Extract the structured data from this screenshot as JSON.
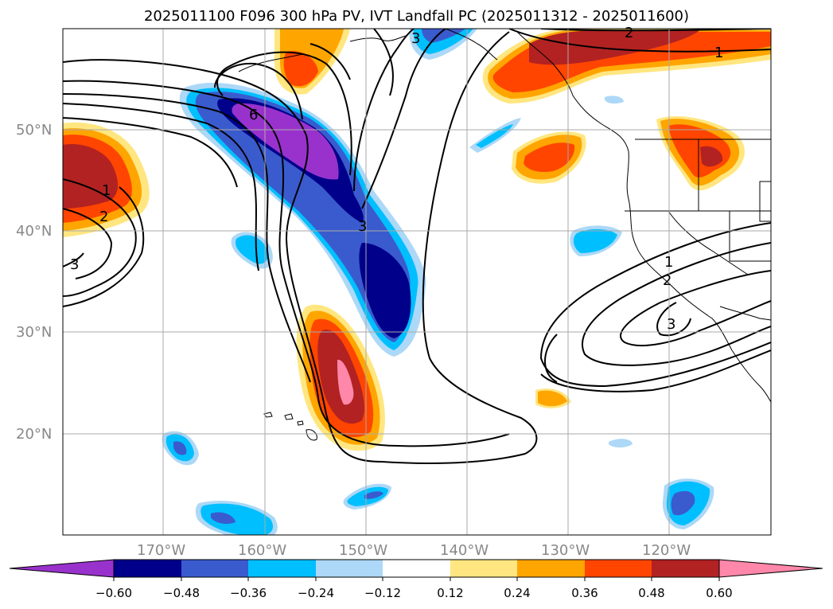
{
  "title": "2025011100 F096 300 hPa PV, IVT Landfall PC (2025011312 - 2025011600)",
  "lat_labels": [
    "50°N",
    "40°N",
    "30°N",
    "20°N"
  ],
  "lon_labels": [
    "170°W",
    "160°W",
    "150°W",
    "140°W",
    "130°W",
    "120°W"
  ],
  "contour_labels": [
    "1",
    "2",
    "3",
    "6"
  ],
  "colorbar": {
    "ticks": [
      "−0.60",
      "−0.48",
      "−0.36",
      "−0.24",
      "−0.12",
      "0.12",
      "0.24",
      "0.36",
      "0.48",
      "0.60"
    ],
    "colors": [
      "#9932cc",
      "#00008b",
      "#3a5bcd",
      "#00bfff",
      "#add8f7",
      "#ffffff",
      "#ffe680",
      "#ffa500",
      "#ff4500",
      "#b22222",
      "#ff88aa"
    ]
  }
}
